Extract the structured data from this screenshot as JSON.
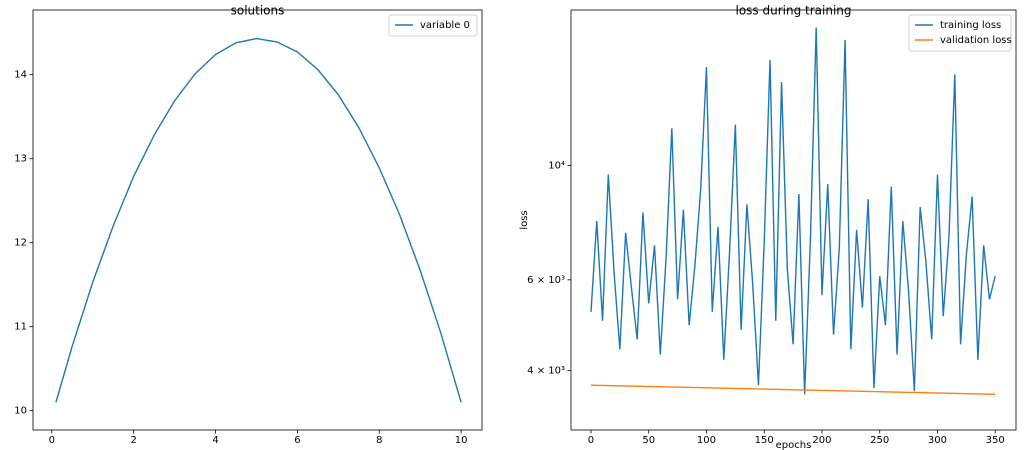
{
  "chart_data": [
    {
      "type": "line",
      "title": "solutions",
      "xlim": [
        -0.46,
        10.51
      ],
      "ylim": [
        9.77,
        14.77
      ],
      "xticks": [
        0,
        2,
        4,
        6,
        8,
        10
      ],
      "yticks": [
        10,
        11,
        12,
        13,
        14
      ],
      "log_y": false,
      "legend": "upper right",
      "series": [
        {
          "name": "variable 0",
          "color": "#1f77b4",
          "x": [
            0.1,
            0.5,
            1,
            1.5,
            2,
            2.5,
            3,
            3.5,
            4,
            4.5,
            5,
            5.5,
            6,
            6.5,
            7,
            7.5,
            8,
            8.5,
            9,
            9.5,
            10
          ],
          "values": [
            10.1,
            10.77,
            11.53,
            12.2,
            12.79,
            13.28,
            13.69,
            14.01,
            14.24,
            14.38,
            14.43,
            14.39,
            14.27,
            14.06,
            13.76,
            13.37,
            12.89,
            12.33,
            11.67,
            10.93,
            10.1
          ]
        }
      ]
    },
    {
      "type": "line",
      "title": "loss during training",
      "xlabel": "epochs",
      "ylabel": "loss",
      "xlim": [
        -17.3,
        368
      ],
      "ylim": [
        3070,
        20000
      ],
      "xticks": [
        0,
        50,
        100,
        150,
        200,
        250,
        300,
        350
      ],
      "yticks": [
        {
          "value": 4000,
          "label": "4 × 10³"
        },
        {
          "value": 6000,
          "label": "6 × 10³"
        },
        {
          "value": 10000,
          "label": "10⁴"
        }
      ],
      "log_y": true,
      "legend": "upper right",
      "series": [
        {
          "name": "training loss",
          "color": "#1f77b4",
          "x": [
            0,
            5,
            10,
            15,
            20,
            25,
            30,
            35,
            40,
            45,
            50,
            55,
            60,
            65,
            70,
            75,
            80,
            85,
            90,
            95,
            100,
            105,
            110,
            115,
            120,
            125,
            130,
            135,
            140,
            145,
            150,
            155,
            160,
            165,
            170,
            175,
            180,
            185,
            190,
            195,
            200,
            205,
            210,
            215,
            220,
            225,
            230,
            235,
            240,
            245,
            250,
            255,
            260,
            265,
            270,
            275,
            280,
            285,
            290,
            295,
            300,
            305,
            310,
            315,
            320,
            325,
            330,
            335,
            340,
            345,
            350
          ],
          "values": [
            5200,
            7800,
            5000,
            9600,
            6200,
            4400,
            7400,
            5800,
            4600,
            8100,
            5400,
            7000,
            4300,
            6600,
            11800,
            5500,
            8200,
            4900,
            6400,
            9000,
            15500,
            5200,
            7600,
            4200,
            6800,
            12000,
            4800,
            8400,
            5900,
            3750,
            7100,
            16000,
            5000,
            14500,
            6300,
            4500,
            8800,
            3600,
            7200,
            18500,
            5600,
            9200,
            4700,
            6900,
            17500,
            4400,
            7500,
            5300,
            8600,
            3700,
            6100,
            4900,
            9100,
            4300,
            7800,
            5700,
            3650,
            8300,
            6500,
            4600,
            9600,
            5100,
            7300,
            15000,
            4500,
            6700,
            8700,
            4200,
            7000,
            5500,
            6100
          ]
        },
        {
          "name": "validation loss",
          "color": "#ff7f0e",
          "x": [
            0,
            350
          ],
          "values": [
            3750,
            3600
          ]
        }
      ]
    }
  ]
}
